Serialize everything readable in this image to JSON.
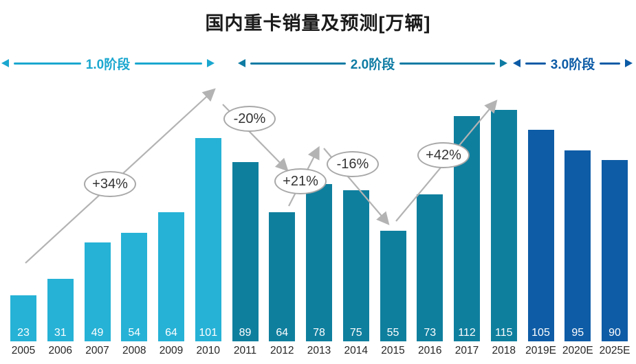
{
  "title": "国内重卡销量及预测[万辆]",
  "phases": [
    {
      "label": "1.0阶段",
      "color": "#1ba7cf",
      "bar_color": "#26b2d6",
      "bar_start": 0,
      "bar_end": 5
    },
    {
      "label": "2.0阶段",
      "color": "#0e7ba3",
      "bar_color": "#0f7f9e",
      "bar_start": 6,
      "bar_end": 13
    },
    {
      "label": "3.0阶段",
      "color": "#0c5ba6",
      "bar_color": "#0e5ca6",
      "bar_start": 14,
      "bar_end": 16
    }
  ],
  "chart_data": {
    "type": "bar",
    "title": "国内重卡销量及预测[万辆]",
    "categories": [
      "2005",
      "2006",
      "2007",
      "2008",
      "2009",
      "2010",
      "2011",
      "2012",
      "2013",
      "2014",
      "2015",
      "2016",
      "2017",
      "2018",
      "2019E",
      "2020E",
      "2025E"
    ],
    "values": [
      23,
      31,
      49,
      54,
      64,
      101,
      89,
      64,
      78,
      75,
      55,
      73,
      112,
      115,
      105,
      95,
      90
    ],
    "ylim": [
      0,
      120
    ],
    "xlabel": "",
    "ylabel": "",
    "legend": "none",
    "grid": false,
    "value_label_color": "#ffffff",
    "trend_line_color": "#b3b3b3",
    "annotations": [
      {
        "label": "+34%"
      },
      {
        "label": "-20%"
      },
      {
        "label": "+21%"
      },
      {
        "label": "-16%"
      },
      {
        "label": "+42%"
      }
    ]
  }
}
